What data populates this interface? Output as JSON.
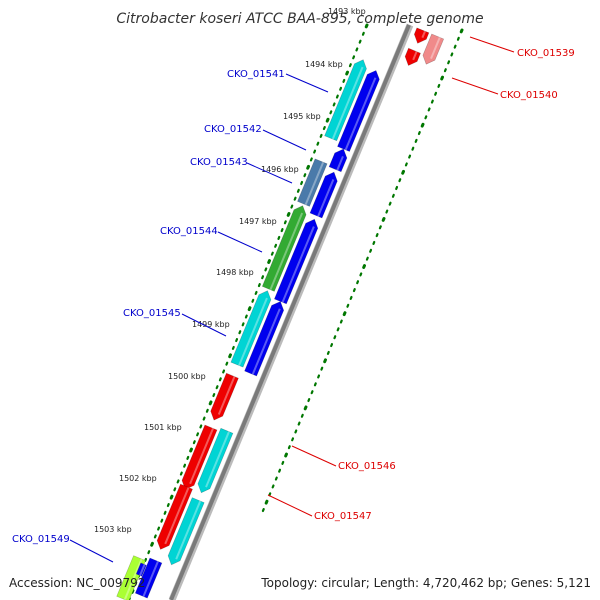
{
  "title": "Citrobacter koseri ATCC BAA-895, complete genome",
  "footer": {
    "accession": "Accession: NC_009792",
    "topology": "Topology: circular; Length: 4,720,462 bp; Genes: 5,121"
  },
  "kbp_labels": [
    "1493 kbp",
    "1494 kbp",
    "1495 kbp",
    "1496 kbp",
    "1497 kbp",
    "1498 kbp",
    "1499 kbp",
    "1500 kbp",
    "1501 kbp",
    "1502 kbp",
    "1503 kbp"
  ],
  "colors": {
    "forward_label": "#0000cc",
    "reverse_label": "#dd0000",
    "backbone": "#888888",
    "tick": "#007700",
    "cds_blue": "#0000ee",
    "cyan": "#00d4d4",
    "steelblue": "#4a7aaa",
    "green": "#33aa33",
    "red": "#ee0000",
    "pink": "#f08a8a",
    "lime": "#aaff33"
  },
  "gene_labels": [
    {
      "id": "CKO_01539",
      "text": "CKO_01539",
      "strand": "reverse"
    },
    {
      "id": "CKO_01540",
      "text": "CKO_01540",
      "strand": "reverse"
    },
    {
      "id": "CKO_01541",
      "text": "CKO_01541",
      "strand": "forward"
    },
    {
      "id": "CKO_01542",
      "text": "CKO_01542",
      "strand": "forward"
    },
    {
      "id": "CKO_01543",
      "text": "CKO_01543",
      "strand": "forward"
    },
    {
      "id": "CKO_01544",
      "text": "CKO_01544",
      "strand": "forward"
    },
    {
      "id": "CKO_01545",
      "text": "CKO_01545",
      "strand": "forward"
    },
    {
      "id": "CKO_01546",
      "text": "CKO_01546",
      "strand": "reverse"
    },
    {
      "id": "CKO_01547",
      "text": "CKO_01547",
      "strand": "reverse"
    },
    {
      "id": "CKO_01549",
      "text": "CKO_01549",
      "strand": "forward"
    }
  ]
}
